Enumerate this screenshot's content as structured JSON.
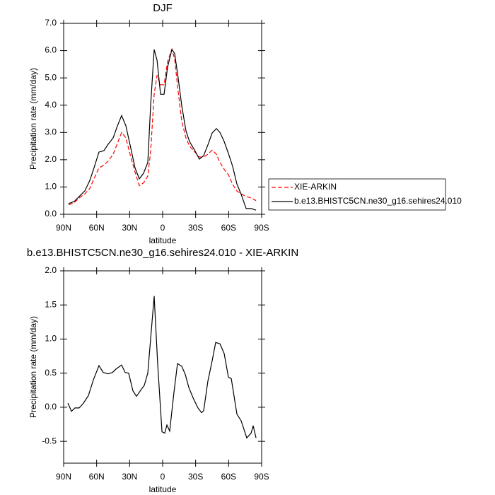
{
  "chart_data": [
    {
      "type": "line",
      "title": "DJF",
      "x_label": "latitude",
      "y_label": "Precipitation rate (mm/day)",
      "x": [
        85.5,
        80.4,
        75.9,
        70.7,
        66.2,
        62.4,
        57.9,
        53.4,
        49.5,
        45,
        41.1,
        37.3,
        33.4,
        29.6,
        25.1,
        21.2,
        17.4,
        13.5,
        10.9,
        7.7,
        5.1,
        1.9,
        -1.3,
        -4.5,
        -8.4,
        -10.9,
        -14.1,
        -17.4,
        -21.2,
        -24.4,
        -28.9,
        -33.4,
        -37.3,
        -41.1,
        -45,
        -48.9,
        -52.1,
        -55.9,
        -59.8,
        -63.6,
        -67.5,
        -71.4,
        -75.9,
        -80.4,
        -84.9
      ],
      "series": [
        {
          "name": "XIE-ARKIN",
          "color": "#ff0000",
          "line_style": "dashed",
          "values": [
            0.35,
            0.42,
            0.6,
            0.75,
            0.95,
            1.3,
            1.7,
            1.8,
            1.95,
            2.2,
            2.6,
            3.0,
            2.8,
            2.2,
            1.55,
            1.05,
            1.15,
            1.4,
            2.3,
            4.4,
            5.1,
            4.75,
            4.75,
            5.6,
            6.05,
            5.7,
            4.5,
            3.4,
            2.8,
            2.5,
            2.3,
            2.1,
            2.1,
            2.2,
            2.35,
            2.2,
            1.9,
            1.65,
            1.45,
            1.1,
            0.85,
            0.75,
            0.65,
            0.6,
            0.5
          ]
        },
        {
          "name": "b.e13.BHISTC5CN.ne30_g16.sehires24.010",
          "color": "#000000",
          "line_style": "solid",
          "values": [
            0.39,
            0.47,
            0.65,
            0.86,
            1.24,
            1.7,
            2.28,
            2.33,
            2.57,
            2.8,
            3.24,
            3.62,
            3.24,
            2.54,
            1.7,
            1.3,
            1.5,
            1.9,
            4.0,
            6.04,
            5.65,
            4.4,
            4.4,
            5.4,
            6.04,
            5.9,
            5.0,
            3.97,
            3.06,
            2.67,
            2.36,
            2.02,
            2.15,
            2.54,
            2.98,
            3.14,
            3.0,
            2.67,
            2.23,
            1.76,
            1.11,
            0.73,
            0.21,
            0.21,
            0.15
          ]
        }
      ],
      "xlim": [
        90,
        -90
      ],
      "xticks": [
        {
          "value": 90,
          "label": "90N"
        },
        {
          "value": 60,
          "label": "60N"
        },
        {
          "value": 30,
          "label": "30N"
        },
        0,
        {
          "value": -30,
          "label": "30S"
        },
        {
          "value": -60,
          "label": "60S"
        },
        {
          "value": -90,
          "label": "90S"
        }
      ],
      "ylim": [
        0,
        7
      ],
      "yticks": [
        {
          "value": 0,
          "label": "0.0"
        },
        {
          "value": 1,
          "label": "1.0"
        },
        {
          "value": 2,
          "label": "2.0"
        },
        {
          "value": 3,
          "label": "3.0"
        },
        {
          "value": 4,
          "label": "4.0"
        },
        {
          "value": 5,
          "label": "5.0"
        },
        {
          "value": 6,
          "label": "6.0"
        },
        {
          "value": 7,
          "label": "7.0"
        }
      ],
      "legend": "right"
    },
    {
      "type": "line",
      "title": "b.e13.BHISTC5CN.ne30_g16.sehires24.010 - XIE-ARKIN",
      "x_label": "latitude",
      "y_label": "Precipitation rate (mm/day)",
      "x": [
        86.1,
        82.9,
        79.7,
        75.9,
        72,
        67.5,
        63,
        57.9,
        54,
        49.5,
        45.6,
        42.4,
        37.3,
        34.1,
        30.9,
        27,
        23.8,
        19.9,
        16.7,
        13.5,
        7.7,
        4.5,
        0.6,
        -1.9,
        -3.9,
        -6.4,
        -10.3,
        -13.5,
        -17.4,
        -20.6,
        -23.8,
        -27.6,
        -32.1,
        -35.4,
        -37.3,
        -41.1,
        -45,
        -48.2,
        -52.1,
        -55.9,
        -59.8,
        -62.4,
        -67.5,
        -71.4,
        -76.5,
        -80.4,
        -82.3,
        -84.9
      ],
      "series": [
        {
          "color": "#000000",
          "line_style": "solid",
          "values": [
            0.06,
            -0.06,
            -0.01,
            -0.01,
            0.06,
            0.17,
            0.4,
            0.61,
            0.51,
            0.49,
            0.51,
            0.56,
            0.62,
            0.51,
            0.5,
            0.24,
            0.16,
            0.25,
            0.32,
            0.5,
            1.63,
            0.63,
            -0.36,
            -0.38,
            -0.26,
            -0.35,
            0.22,
            0.64,
            0.6,
            0.48,
            0.29,
            0.14,
            -0.01,
            -0.08,
            -0.05,
            0.38,
            0.68,
            0.95,
            0.93,
            0.79,
            0.44,
            0.42,
            -0.1,
            -0.2,
            -0.45,
            -0.38,
            -0.27,
            -0.45
          ]
        }
      ],
      "xlim": [
        90,
        -90
      ],
      "xticks": [
        {
          "value": 90,
          "label": "90N"
        },
        {
          "value": 60,
          "label": "60N"
        },
        {
          "value": 30,
          "label": "30N"
        },
        0,
        {
          "value": -30,
          "label": "30S"
        },
        {
          "value": -60,
          "label": "60S"
        },
        {
          "value": -90,
          "label": "90S"
        }
      ],
      "ylim": [
        -0.82,
        2.0
      ],
      "yticks": [
        -0.5,
        {
          "value": 0,
          "label": "0.0"
        },
        0.5,
        {
          "value": 1,
          "label": "1.0"
        },
        1.5,
        {
          "value": 2,
          "label": "2.0"
        }
      ]
    }
  ]
}
